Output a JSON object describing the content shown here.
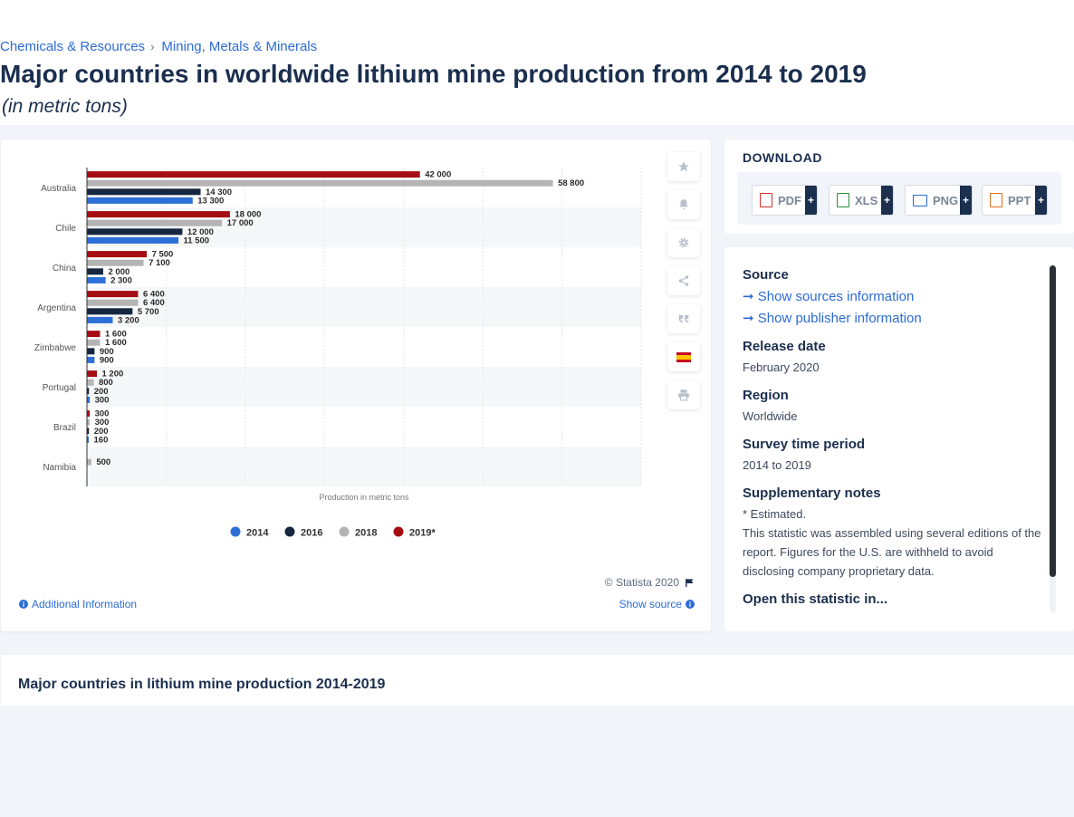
{
  "breadcrumb": {
    "item1": "Chemicals & Resources",
    "sep": "›",
    "item2": "Mining, Metals & Minerals"
  },
  "title": "Major countries in worldwide lithium mine production from 2014 to 2019",
  "subtitle": "(in metric tons)",
  "chart_data": {
    "type": "bar",
    "orientation": "horizontal",
    "categories": [
      "Australia",
      "Chile",
      "China",
      "Argentina",
      "Zimbabwe",
      "Portugal",
      "Brazil",
      "Namibia"
    ],
    "series": [
      {
        "name": "2019*",
        "color": "#a50d12",
        "values": [
          42000,
          18000,
          7500,
          6400,
          1600,
          1200,
          300,
          null
        ],
        "labels": [
          "42 000",
          "18 000",
          "7 500",
          "6 400",
          "1 600",
          "1 200",
          "300",
          ""
        ]
      },
      {
        "name": "2018",
        "color": "#b4b4b4",
        "values": [
          58800,
          17000,
          7100,
          6400,
          1600,
          800,
          300,
          500
        ],
        "labels": [
          "58 800",
          "17 000",
          "7 100",
          "6 400",
          "1 600",
          "800",
          "300",
          "500"
        ]
      },
      {
        "name": "2016",
        "color": "#152640",
        "values": [
          14300,
          12000,
          2000,
          5700,
          900,
          200,
          200,
          null
        ],
        "labels": [
          "14 300",
          "12 000",
          "2 000",
          "5 700",
          "900",
          "200",
          "200",
          ""
        ]
      },
      {
        "name": "2014",
        "color": "#2d6fd9",
        "values": [
          13300,
          11500,
          2300,
          3200,
          900,
          300,
          160,
          null
        ],
        "labels": [
          "13 300",
          "11 500",
          "2 300",
          "3 200",
          "900",
          "300",
          "160",
          ""
        ]
      }
    ],
    "legend_order": [
      "2014",
      "2016",
      "2018",
      "2019*"
    ],
    "xlabel": "Production in metric tons",
    "xlim": [
      0,
      70000
    ],
    "legend": "bottom-center",
    "grid": true
  },
  "chart_footer": {
    "copyright": "© Statista 2020",
    "additional_info": "Additional Information",
    "show_source": "Show source"
  },
  "side_buttons": [
    "star-icon",
    "bell-icon",
    "gear-icon",
    "share-icon",
    "quote-icon",
    "spain-flag-icon",
    "print-icon"
  ],
  "download": {
    "title": "DOWNLOAD",
    "buttons": [
      {
        "label": "PDF",
        "color": "#d4302b",
        "plus": "+"
      },
      {
        "label": "XLS",
        "color": "#2e8b3c",
        "plus": "+"
      },
      {
        "label": "PNG",
        "color": "#2c6bd6",
        "plus": "+"
      },
      {
        "label": "PPT",
        "color": "#e0701e",
        "plus": "+"
      }
    ]
  },
  "meta": {
    "source_h": "Source",
    "show_sources": "Show sources information",
    "show_publisher": "Show publisher information",
    "release_h": "Release date",
    "release_v": "February 2020",
    "region_h": "Region",
    "region_v": "Worldwide",
    "survey_h": "Survey time period",
    "survey_v": "2014 to 2019",
    "notes_h": "Supplementary notes",
    "notes_v1": "* Estimated.",
    "notes_v2": "This statistic was assembled using several editions of the report. Figures for the U.S. are withheld to avoid disclosing company proprietary data.",
    "open_h": "Open this statistic in..."
  },
  "bottom_title": "Major countries in lithium mine production 2014-2019"
}
